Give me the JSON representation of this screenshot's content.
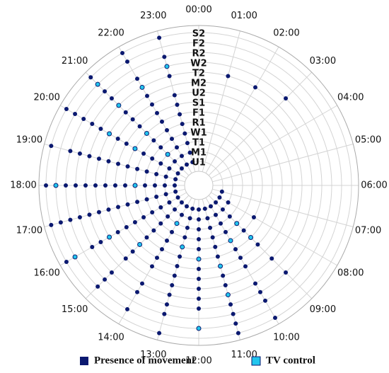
{
  "chart_data": {
    "type": "polar-scatter",
    "angular_categories": [
      "00:00",
      "01:00",
      "02:00",
      "03:00",
      "04:00",
      "05:00",
      "06:00",
      "07:00",
      "08:00",
      "09:00",
      "10:00",
      "11:00",
      "12:00",
      "13:00",
      "14:00",
      "15:00",
      "16:00",
      "17:00",
      "18:00",
      "19:00",
      "20:00",
      "21:00",
      "22:00",
      "23:00"
    ],
    "radial_categories": [
      "U1",
      "M1",
      "T1",
      "W1",
      "R1",
      "F1",
      "S1",
      "U2",
      "M2",
      "T2",
      "W2",
      "R2",
      "F2",
      "S2"
    ],
    "grid": true,
    "legend": "bottom",
    "series": [
      {
        "name": "Presence of movement",
        "color": "#0b1970",
        "points": [
          [
            "01:00",
            "T2"
          ],
          [
            "02:00",
            "T2"
          ],
          [
            "03:00",
            "W2"
          ],
          [
            "07:00",
            "U1"
          ],
          [
            "08:00",
            "U1"
          ],
          [
            "08:00",
            "M1"
          ],
          [
            "08:00",
            "R1"
          ],
          [
            "09:00",
            "U1"
          ],
          [
            "09:00",
            "M1"
          ],
          [
            "09:00",
            "T1"
          ],
          [
            "09:00",
            "R1"
          ],
          [
            "09:00",
            "S1"
          ],
          [
            "09:00",
            "M2"
          ],
          [
            "09:00",
            "W2"
          ],
          [
            "10:00",
            "U1"
          ],
          [
            "10:00",
            "M1"
          ],
          [
            "10:00",
            "T1"
          ],
          [
            "10:00",
            "W1"
          ],
          [
            "10:00",
            "F1"
          ],
          [
            "10:00",
            "S1"
          ],
          [
            "10:00",
            "U2"
          ],
          [
            "10:00",
            "T2"
          ],
          [
            "10:00",
            "W2"
          ],
          [
            "10:00",
            "R2"
          ],
          [
            "10:00",
            "S2"
          ],
          [
            "11:00",
            "U1"
          ],
          [
            "11:00",
            "M1"
          ],
          [
            "11:00",
            "T1"
          ],
          [
            "11:00",
            "W1"
          ],
          [
            "11:00",
            "R1"
          ],
          [
            "11:00",
            "F1"
          ],
          [
            "11:00",
            "U2"
          ],
          [
            "11:00",
            "M2"
          ],
          [
            "11:00",
            "W2"
          ],
          [
            "11:00",
            "R2"
          ],
          [
            "11:00",
            "F2"
          ],
          [
            "11:00",
            "S2"
          ],
          [
            "12:00",
            "U1"
          ],
          [
            "12:00",
            "M1"
          ],
          [
            "12:00",
            "T1"
          ],
          [
            "12:00",
            "W1"
          ],
          [
            "12:00",
            "R1"
          ],
          [
            "12:00",
            "S1"
          ],
          [
            "12:00",
            "U2"
          ],
          [
            "12:00",
            "M2"
          ],
          [
            "12:00",
            "T2"
          ],
          [
            "12:00",
            "W2"
          ],
          [
            "13:00",
            "U1"
          ],
          [
            "13:00",
            "M1"
          ],
          [
            "13:00",
            "T1"
          ],
          [
            "13:00",
            "W1"
          ],
          [
            "13:00",
            "F1"
          ],
          [
            "13:00",
            "S1"
          ],
          [
            "13:00",
            "U2"
          ],
          [
            "13:00",
            "M2"
          ],
          [
            "13:00",
            "T2"
          ],
          [
            "13:00",
            "W2"
          ],
          [
            "13:00",
            "R2"
          ],
          [
            "13:00",
            "S2"
          ],
          [
            "14:00",
            "U1"
          ],
          [
            "14:00",
            "M1"
          ],
          [
            "14:00",
            "W1"
          ],
          [
            "14:00",
            "R1"
          ],
          [
            "14:00",
            "F1"
          ],
          [
            "14:00",
            "S1"
          ],
          [
            "14:00",
            "U2"
          ],
          [
            "14:00",
            "T2"
          ],
          [
            "14:00",
            "W2"
          ],
          [
            "14:00",
            "F2"
          ],
          [
            "15:00",
            "U1"
          ],
          [
            "15:00",
            "M1"
          ],
          [
            "15:00",
            "T1"
          ],
          [
            "15:00",
            "W1"
          ],
          [
            "15:00",
            "R1"
          ],
          [
            "15:00",
            "F1"
          ],
          [
            "15:00",
            "U2"
          ],
          [
            "15:00",
            "M2"
          ],
          [
            "15:00",
            "W2"
          ],
          [
            "15:00",
            "R2"
          ],
          [
            "15:00",
            "F2"
          ],
          [
            "16:00",
            "U1"
          ],
          [
            "16:00",
            "M1"
          ],
          [
            "16:00",
            "T1"
          ],
          [
            "16:00",
            "W1"
          ],
          [
            "16:00",
            "R1"
          ],
          [
            "16:00",
            "F1"
          ],
          [
            "16:00",
            "S1"
          ],
          [
            "16:00",
            "U2"
          ],
          [
            "16:00",
            "T2"
          ],
          [
            "16:00",
            "W2"
          ],
          [
            "16:00",
            "S2"
          ],
          [
            "17:00",
            "U1"
          ],
          [
            "17:00",
            "M1"
          ],
          [
            "17:00",
            "T1"
          ],
          [
            "17:00",
            "W1"
          ],
          [
            "17:00",
            "R1"
          ],
          [
            "17:00",
            "F1"
          ],
          [
            "17:00",
            "S1"
          ],
          [
            "17:00",
            "U2"
          ],
          [
            "17:00",
            "M2"
          ],
          [
            "17:00",
            "T2"
          ],
          [
            "17:00",
            "W2"
          ],
          [
            "17:00",
            "R2"
          ],
          [
            "17:00",
            "F2"
          ],
          [
            "17:00",
            "S2"
          ],
          [
            "18:00",
            "U1"
          ],
          [
            "18:00",
            "M1"
          ],
          [
            "18:00",
            "T1"
          ],
          [
            "18:00",
            "W1"
          ],
          [
            "18:00",
            "F1"
          ],
          [
            "18:00",
            "S1"
          ],
          [
            "18:00",
            "U2"
          ],
          [
            "18:00",
            "M2"
          ],
          [
            "18:00",
            "T2"
          ],
          [
            "18:00",
            "W2"
          ],
          [
            "18:00",
            "R2"
          ],
          [
            "18:00",
            "S2"
          ],
          [
            "19:00",
            "U1"
          ],
          [
            "19:00",
            "M1"
          ],
          [
            "19:00",
            "T1"
          ],
          [
            "19:00",
            "W1"
          ],
          [
            "19:00",
            "R1"
          ],
          [
            "19:00",
            "F1"
          ],
          [
            "19:00",
            "S1"
          ],
          [
            "19:00",
            "U2"
          ],
          [
            "19:00",
            "M2"
          ],
          [
            "19:00",
            "T2"
          ],
          [
            "19:00",
            "W2"
          ],
          [
            "19:00",
            "R2"
          ],
          [
            "19:00",
            "S2"
          ],
          [
            "20:00",
            "U1"
          ],
          [
            "20:00",
            "M1"
          ],
          [
            "20:00",
            "T1"
          ],
          [
            "20:00",
            "W1"
          ],
          [
            "20:00",
            "R1"
          ],
          [
            "20:00",
            "S1"
          ],
          [
            "20:00",
            "U2"
          ],
          [
            "20:00",
            "T2"
          ],
          [
            "20:00",
            "W2"
          ],
          [
            "20:00",
            "R2"
          ],
          [
            "20:00",
            "F2"
          ],
          [
            "20:00",
            "S2"
          ],
          [
            "21:00",
            "U1"
          ],
          [
            "21:00",
            "M1"
          ],
          [
            "21:00",
            "W1"
          ],
          [
            "21:00",
            "R1"
          ],
          [
            "21:00",
            "S1"
          ],
          [
            "21:00",
            "U2"
          ],
          [
            "21:00",
            "M2"
          ],
          [
            "21:00",
            "W2"
          ],
          [
            "21:00",
            "R2"
          ],
          [
            "21:00",
            "S2"
          ],
          [
            "22:00",
            "U1"
          ],
          [
            "22:00",
            "M1"
          ],
          [
            "22:00",
            "T1"
          ],
          [
            "22:00",
            "W1"
          ],
          [
            "22:00",
            "R1"
          ],
          [
            "22:00",
            "F1"
          ],
          [
            "22:00",
            "S1"
          ],
          [
            "22:00",
            "U2"
          ],
          [
            "22:00",
            "M2"
          ],
          [
            "22:00",
            "W2"
          ],
          [
            "22:00",
            "F2"
          ],
          [
            "22:00",
            "S2"
          ],
          [
            "23:00",
            "U1"
          ],
          [
            "23:00",
            "M1"
          ],
          [
            "23:00",
            "T1"
          ],
          [
            "23:00",
            "W1"
          ],
          [
            "23:00",
            "R1"
          ],
          [
            "23:00",
            "F1"
          ],
          [
            "23:00",
            "S1"
          ],
          [
            "23:00",
            "U2"
          ],
          [
            "23:00",
            "T2"
          ],
          [
            "23:00",
            "R2"
          ],
          [
            "23:00",
            "S2"
          ]
        ]
      },
      {
        "name": "TV control",
        "color": "#22c6ee",
        "points": [
          [
            "09:00",
            "W1"
          ],
          [
            "09:00",
            "F1"
          ],
          [
            "10:00",
            "R1"
          ],
          [
            "11:00",
            "S1"
          ],
          [
            "11:00",
            "T2"
          ],
          [
            "12:00",
            "F1"
          ],
          [
            "12:00",
            "F2"
          ],
          [
            "13:00",
            "R1"
          ],
          [
            "14:00",
            "T1"
          ],
          [
            "15:00",
            "S1"
          ],
          [
            "16:00",
            "M2"
          ],
          [
            "16:00",
            "F2"
          ],
          [
            "18:00",
            "R1"
          ],
          [
            "18:00",
            "F2"
          ],
          [
            "20:00",
            "F1"
          ],
          [
            "20:00",
            "M2"
          ],
          [
            "21:00",
            "T1"
          ],
          [
            "21:00",
            "F1"
          ],
          [
            "21:00",
            "T2"
          ],
          [
            "21:00",
            "F2"
          ],
          [
            "22:00",
            "T2"
          ],
          [
            "23:00",
            "W2"
          ]
        ]
      }
    ]
  }
}
